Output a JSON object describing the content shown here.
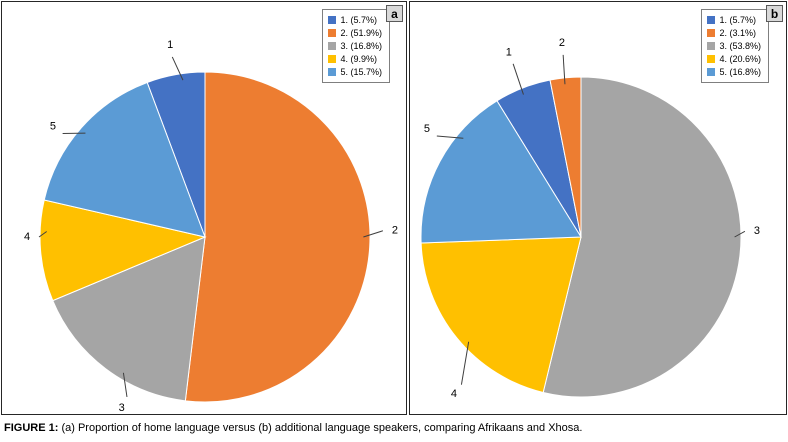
{
  "figure": {
    "caption_label": "FIGURE 1:",
    "caption_text": "(a) Proportion of home language versus (b) additional language speakers, comparing Afrikaans and Xhosa."
  },
  "chart_data": [
    {
      "type": "pie",
      "panel_label": "a",
      "labels": [
        "1",
        "2",
        "3",
        "4",
        "5"
      ],
      "values": [
        5.7,
        51.9,
        16.8,
        9.9,
        15.7
      ],
      "colors": [
        "#4472C4",
        "#ED7D31",
        "#A5A5A5",
        "#FFC000",
        "#5B9BD5"
      ],
      "legend_entries": [
        "1. (5.7%)",
        "2. (51.9%)",
        "3. (16.8%)",
        "4. (9.9%)",
        "5. (15.7%)"
      ],
      "legend_position": "top-right",
      "direction": "clockwise",
      "start": "largest-slice-at-top"
    },
    {
      "type": "pie",
      "panel_label": "b",
      "labels": [
        "1",
        "2",
        "3",
        "4",
        "5"
      ],
      "values": [
        5.7,
        3.1,
        53.8,
        20.6,
        16.8
      ],
      "colors": [
        "#4472C4",
        "#ED7D31",
        "#A5A5A5",
        "#FFC000",
        "#5B9BD5"
      ],
      "legend_entries": [
        "1. (5.7%)",
        "2. (3.1%)",
        "3. (53.8%)",
        "4. (20.6%)",
        "5. (16.8%)"
      ],
      "legend_position": "top-right",
      "direction": "clockwise",
      "start": "largest-slice-at-top"
    }
  ]
}
